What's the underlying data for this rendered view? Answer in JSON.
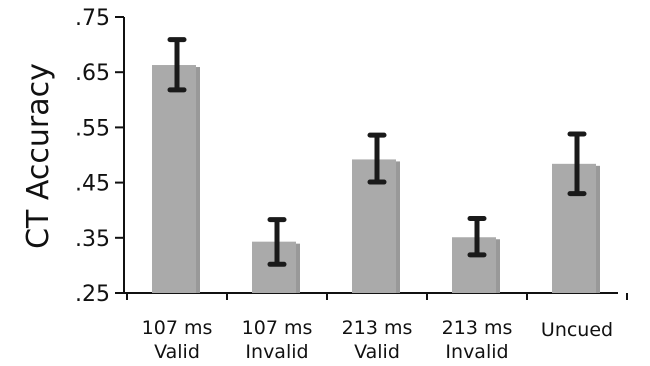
{
  "chart_data": {
    "type": "bar",
    "ylabel": "CT Accuracy",
    "ylim": [
      0.25,
      0.75
    ],
    "yticks": [
      0.25,
      0.35,
      0.45,
      0.55,
      0.65,
      0.75
    ],
    "ytick_labels": [
      ".25",
      ".35",
      ".45",
      ".55",
      ".65",
      ".75"
    ],
    "categories": [
      [
        "107 ms",
        "Valid"
      ],
      [
        "107 ms",
        "Invalid"
      ],
      [
        "213 ms",
        "Valid"
      ],
      [
        "213 ms",
        "Invalid"
      ],
      [
        "Uncued"
      ]
    ],
    "values": [
      0.663,
      0.343,
      0.492,
      0.351,
      0.484
    ],
    "error_low": [
      0.618,
      0.302,
      0.451,
      0.319,
      0.43
    ],
    "error_high": [
      0.709,
      0.383,
      0.536,
      0.385,
      0.538
    ],
    "bar_color": "#aaaaaa",
    "error_color": "#1a1a1a",
    "grid": false
  }
}
